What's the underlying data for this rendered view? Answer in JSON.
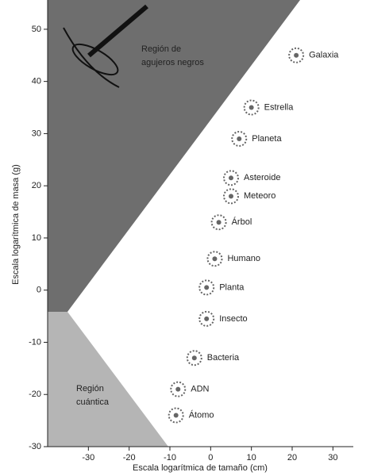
{
  "chart_data": {
    "type": "scatter",
    "x_label": "Escala logarítmica de tamaño (cm)",
    "y_label": "Escala logarítmica de masa (g)",
    "xlim": [
      -40,
      35
    ],
    "xticks": [
      -30,
      -20,
      -10,
      0,
      10,
      20,
      30
    ],
    "ylim": [
      -30,
      55
    ],
    "yticks": [
      -30,
      -20,
      -10,
      0,
      10,
      20,
      30,
      40,
      50
    ],
    "regions": [
      {
        "label": [
          "Región de",
          "agujeros negros"
        ],
        "color": "#6e6e6e"
      },
      {
        "label": [
          "Región",
          "cuántica"
        ],
        "color": "#b5b5b5"
      }
    ],
    "points": [
      {
        "label": "Galaxia",
        "x": 21,
        "y": 45
      },
      {
        "label": "Estrella",
        "x": 10,
        "y": 35
      },
      {
        "label": "Planeta",
        "x": 7,
        "y": 29
      },
      {
        "label": "Asteroide",
        "x": 5,
        "y": 21.5
      },
      {
        "label": "Meteoro",
        "x": 5,
        "y": 18
      },
      {
        "label": "Árbol",
        "x": 2,
        "y": 13
      },
      {
        "label": "Humano",
        "x": 1,
        "y": 6
      },
      {
        "label": "Planta",
        "x": -1,
        "y": 0.5
      },
      {
        "label": "Insecto",
        "x": -1,
        "y": -5.5
      },
      {
        "label": "Bacteria",
        "x": -4,
        "y": -13
      },
      {
        "label": "ADN",
        "x": -8,
        "y": -19
      },
      {
        "label": "Átomo",
        "x": -8.5,
        "y": -24
      }
    ],
    "point_color": "#666666"
  }
}
